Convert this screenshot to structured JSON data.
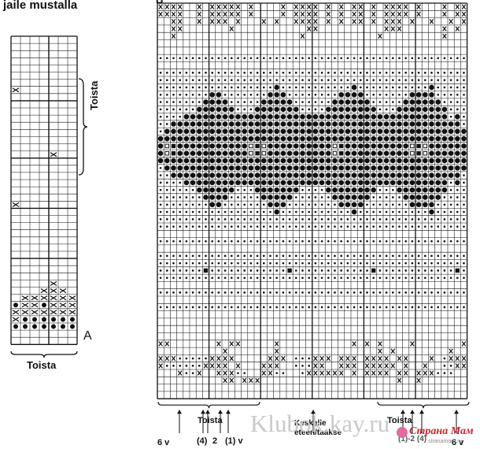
{
  "header": {
    "title": "jaile mustalla",
    "chart_b_letter": "B"
  },
  "chart_a": {
    "letter": "A",
    "repeat_vertical_label": "Toista",
    "repeat_horizontal_label": "Toista",
    "cols": 7,
    "rows": 43,
    "cells": [
      {
        "r": 7,
        "c": 0,
        "s": "x"
      },
      {
        "r": 16,
        "c": 4,
        "s": "x"
      },
      {
        "r": 23,
        "c": 0,
        "s": "x"
      },
      {
        "r": 34,
        "c": 4,
        "s": "x"
      },
      {
        "r": 35,
        "c": 3,
        "s": "x"
      },
      {
        "r": 35,
        "c": 4,
        "s": "x"
      },
      {
        "r": 35,
        "c": 5,
        "s": "x"
      },
      {
        "r": 36,
        "c": 1,
        "s": "x"
      },
      {
        "r": 36,
        "c": 2,
        "s": "x"
      },
      {
        "r": 36,
        "c": 3,
        "s": "x"
      },
      {
        "r": 36,
        "c": 4,
        "s": "x"
      },
      {
        "r": 36,
        "c": 5,
        "s": "x"
      },
      {
        "r": 36,
        "c": 6,
        "s": "x"
      },
      {
        "r": 37,
        "c": 0,
        "s": "dot"
      },
      {
        "r": 37,
        "c": 1,
        "s": "x"
      },
      {
        "r": 37,
        "c": 2,
        "s": "x"
      },
      {
        "r": 37,
        "c": 3,
        "s": "dot"
      },
      {
        "r": 37,
        "c": 4,
        "s": "x"
      },
      {
        "r": 37,
        "c": 5,
        "s": "x"
      },
      {
        "r": 37,
        "c": 6,
        "s": "x"
      },
      {
        "r": 38,
        "c": 0,
        "s": "x"
      },
      {
        "r": 38,
        "c": 1,
        "s": "x"
      },
      {
        "r": 38,
        "c": 2,
        "s": "x"
      },
      {
        "r": 38,
        "c": 3,
        "s": "x"
      },
      {
        "r": 38,
        "c": 4,
        "s": "x"
      },
      {
        "r": 38,
        "c": 5,
        "s": "x"
      },
      {
        "r": 38,
        "c": 6,
        "s": "x"
      },
      {
        "r": 39,
        "c": 0,
        "s": "x"
      },
      {
        "r": 39,
        "c": 1,
        "s": "dot"
      },
      {
        "r": 39,
        "c": 2,
        "s": "dot"
      },
      {
        "r": 39,
        "c": 3,
        "s": "dot"
      },
      {
        "r": 39,
        "c": 4,
        "s": "dot"
      },
      {
        "r": 39,
        "c": 5,
        "s": "dot"
      },
      {
        "r": 39,
        "c": 6,
        "s": "dot"
      },
      {
        "r": 40,
        "c": 0,
        "s": "dot"
      },
      {
        "r": 40,
        "c": 1,
        "s": "dot"
      },
      {
        "r": 40,
        "c": 2,
        "s": "dot"
      },
      {
        "r": 40,
        "c": 3,
        "s": "dot"
      },
      {
        "r": 40,
        "c": 4,
        "s": "dot"
      },
      {
        "r": 40,
        "c": 5,
        "s": "dot"
      },
      {
        "r": 40,
        "c": 6,
        "s": "dot"
      }
    ]
  },
  "chart_b": {
    "cols": 48,
    "rows": 54,
    "rows_data": [
      "xxxx..x.xxxxx.x....x.xxxx.x.x.xx.x.xxxx.x...x.xx",
      "xxxx..x.xxxxx.x....x.xxxx.x.x.xx.x.xxxx.x...x.xx",
      "..xx..x.xxx.x...x.x..xxxx.x.x.xx.x.xxx.x..x..x.x",
      "..xx.......x...........xx..........xxx......x.x.",
      "..x...................x...........x.........x...",
      "................................................",
      "................................................",
      "dddddddddddddddddddddddddddddddddddddddddddddddd",
      "................................................",
      "dddddddddddddddddddddddddddddddddddddddddddddddd",
      "dddddddddddddddddddddddddddddddddddddddddddddddd",
      "ddddddddddddddddddOdddddddddddOdddddddddddOddddd",
      "ddddddddOOdddddddOOOddddddddOOOOdddddddOOOOddddd",
      "dddddddOOOOdddddOOOOOddddddOOOOOOdddddOOOOOOdddd",
      "ddddddOOOOOOdddOOOOOOOddddOOOOOOOOdddOOOOOOOOddd",
      "ddddOOOOOOOOOOOOOOOOOOOOOOOOOOOOOOOOOOOOOOOOOdOd",
      "ddOOOOOOOOOOOOOOOOOOOOOOOOOOOOOOOOOOOOOOOOOOOOOd",
      "dOOOOOOOOOOOOOOOOOOOOOOOOOOOOOOOOOOOOOOOOOOOOOOO",
      "OOOOOOOOOOOOOOOOOOOOOOOOOOOOOOOOOOOOOOOOOOOOOOOO",
      "ObSOOOOOOOOOOObSbOOOOOOOOOObSOOOOOOOOOObSbOOOOOO",
      "ObSOOOOOOOOOOObSbOOOOOOOOOObSOOOOOOOOOObSbOOOOOO",
      "OOOOOOOOOOOOOOOOOOOOOOOOOOOOOOOOOOOOOOOOOOOOOOOO",
      "dOOOOOOOOOOOOOOOOOOOOOOOOOOOOOOOOOOOOOOOOOOOOOOO",
      "ddOOOOOOOOOOOOOOOOOOOOOOOOOOOOOOOOOOOOOOOOOOOOOd",
      "ddddOOOOOOOOOOOOOOOOOOOOOOOOOOOOOOOOOOOOOOOOOdOd",
      "ddddddOOOOOOdddOOOOOOOddddOOOOOOOOdddOOOOOOOOddd",
      "dddddddOOOOdddddOOOOOddddddOOOOOOdddddOOOOOOdddd",
      "ddddddddOOdddddddOOOddddddddOOOOdddddddOOOOddddd",
      "ddddddddddddddddddOdddddddddddOdddddddddddOddddd",
      "dddddddddddddddddddddddddddddddddddddddddddddddd",
      "dddddddddddddddddddddddddddddddddddddddddddddddd",
      "................................................",
      "dddddddddddddddddddddddddddddddddddddddddddddddd",
      "................................................",
      "dddddddddddddddddddddddddddddddddddddddddddddddd",
      "dddddddddddddddddddddddddddddddddddddddddddddddd",
      "dddddddSddddddddddddSddddddddddddSddddddddddddSd",
      "dddddddddddddddddddddddddddddddddddddddddddddddd",
      "................................................",
      "dddddddddddddddddddddddddddddddddddddddddddddddd",
      "................................................",
      "dddddddddddddddddddddddddddddddddddddddddddddddd",
      "................................................",
      "................................................",
      "................................................",
      "................................................",
      "xx.......x.xx.....x...........x.x.x....x.......x",
      "..........x.......x...............x.x........x..",
      "xxxdddddxxxx.....xxx.dddxxx.xxx.xxxx.xx...x.dxxx",
      "xddddddxxxx.x...xxx..dddxx..xxx.xxxxx.x..x..ddxx",
      "...xddx..xxxdd..xxdd..dxxxxxx.x.xxxx.xx.xxxddd..",
      "..........xx.xxx.....................x..x.......",
      "................................................",
      "................................................"
    ],
    "bottom": {
      "repeat_label_left": "Toista",
      "repeat_label_right": "Toista",
      "center_label_line1": "Keskelle",
      "center_label_line2": "eteen/taakse",
      "size_6v": "6 v",
      "size_4": "(4)",
      "size_2": "2",
      "size_1v": "(1) v",
      "size_6v_right": "6 v",
      "right_partial": "(1)-2 (4)"
    }
  },
  "watermark": {
    "text": "Klubok.kay.ru",
    "logo_text": "Страна Мам",
    "logo_sub": "stranamam.ru"
  },
  "colors": {
    "ink": "#111111",
    "grid": "#222222",
    "watermark": "#c9c9c9",
    "logo_red": "#d2232a"
  }
}
